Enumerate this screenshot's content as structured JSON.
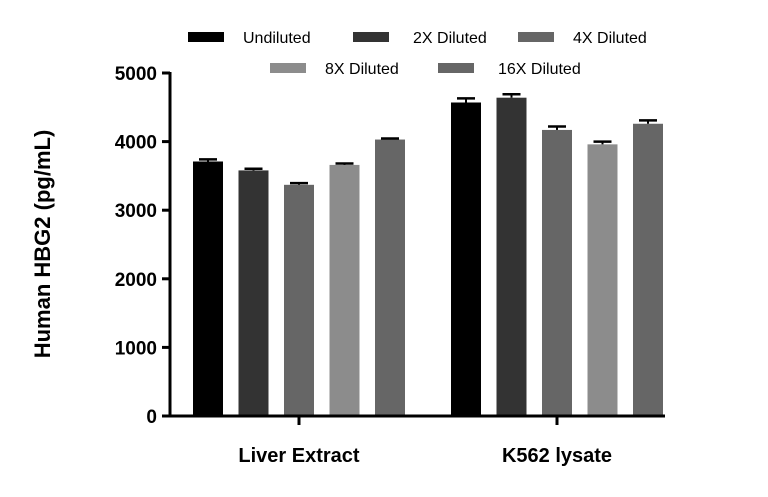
{
  "chart_data": {
    "type": "bar",
    "title": "",
    "xlabel": "",
    "ylabel": "Human HBG2 (pg/mL)",
    "categories": [
      "Liver Extract",
      "K562 lysate"
    ],
    "ylim": [
      0,
      5000
    ],
    "yticks": [
      0,
      1000,
      2000,
      3000,
      4000,
      5000
    ],
    "grid": false,
    "legend_position": "top",
    "series": [
      {
        "name": "Undiluted",
        "color": "#000000",
        "values": [
          3710,
          4570
        ],
        "errors": [
          30,
          60
        ]
      },
      {
        "name": "2X Diluted",
        "color": "#333333",
        "values": [
          3580,
          4640
        ],
        "errors": [
          25,
          50
        ]
      },
      {
        "name": "4X Diluted",
        "color": "#666666",
        "values": [
          3370,
          4170
        ],
        "errors": [
          25,
          50
        ]
      },
      {
        "name": "8X Diluted",
        "color": "#8c8c8c",
        "values": [
          3660,
          3960
        ],
        "errors": [
          20,
          40
        ]
      },
      {
        "name": "16X Diluted",
        "color": "#666666",
        "values": [
          4030,
          4260
        ],
        "errors": [
          15,
          50
        ]
      }
    ]
  }
}
